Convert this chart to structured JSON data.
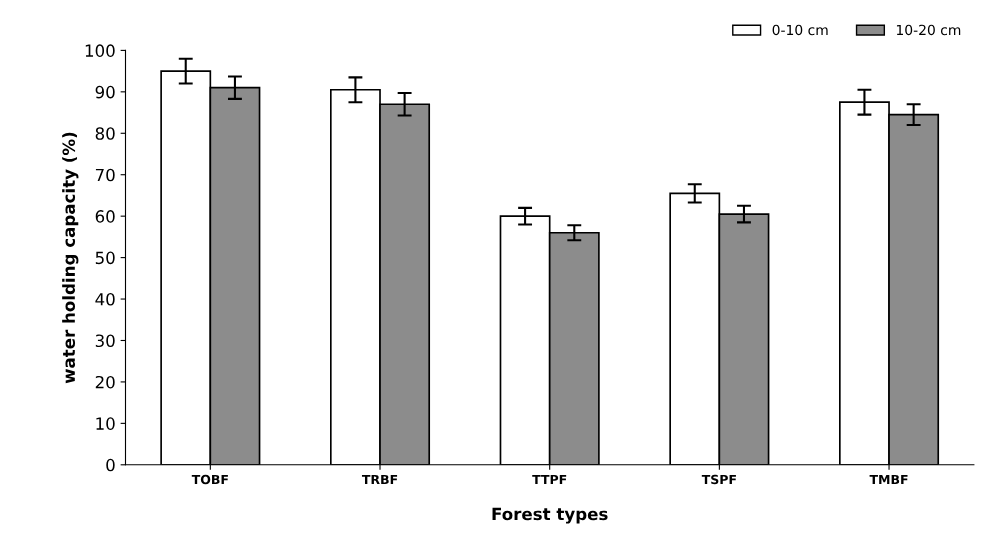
{
  "chart_data": {
    "type": "bar",
    "xlabel": "Forest types",
    "ylabel": "water holding capacity (%)",
    "categories": [
      "TOBF",
      "TRBF",
      "TTPF",
      "TSPF",
      "TMBF"
    ],
    "series": [
      {
        "name": "0-10 cm",
        "color": "#ffffff",
        "values": [
          95,
          90.5,
          60,
          65.5,
          87.5
        ],
        "errors": [
          3,
          3,
          2,
          2.2,
          3
        ]
      },
      {
        "name": "10-20 cm",
        "color": "#8c8c8c",
        "values": [
          91,
          87,
          56,
          60.5,
          84.5
        ],
        "errors": [
          2.7,
          2.7,
          1.8,
          2,
          2.5
        ]
      }
    ],
    "ylim": [
      0,
      100
    ],
    "yticks": [
      0,
      10,
      20,
      30,
      40,
      50,
      60,
      70,
      80,
      90,
      100
    ],
    "grid": false,
    "legend": "top right"
  }
}
